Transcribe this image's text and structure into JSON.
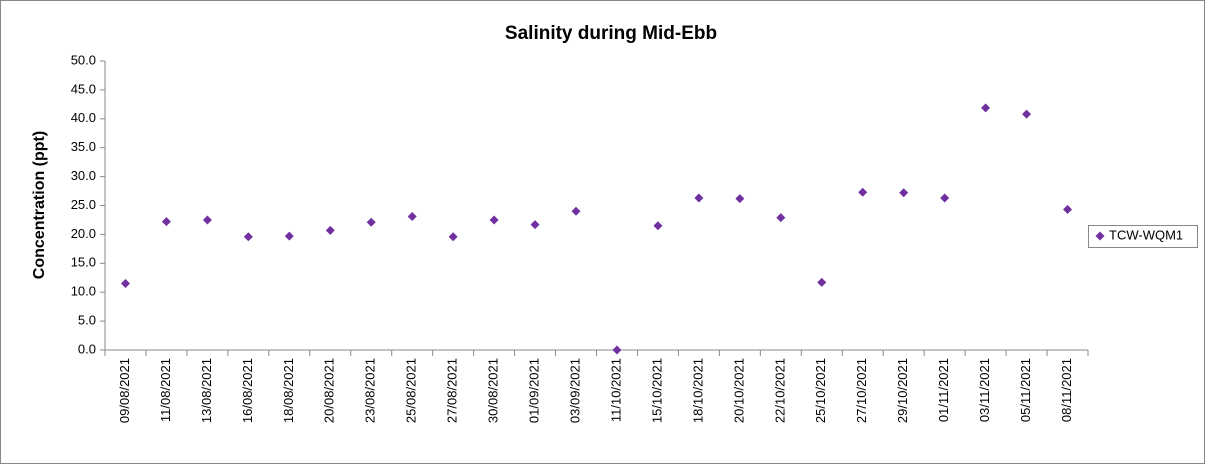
{
  "chart_data": {
    "type": "scatter",
    "title": "Salinity during Mid-Ebb",
    "y_label": "Concentration (ppt)",
    "categories": [
      "09/08/2021",
      "11/08/2021",
      "13/08/2021",
      "16/08/2021",
      "18/08/2021",
      "20/08/2021",
      "23/08/2021",
      "25/08/2021",
      "27/08/2021",
      "30/08/2021",
      "01/09/2021",
      "03/09/2021",
      "11/10/2021",
      "15/10/2021",
      "18/10/2021",
      "20/10/2021",
      "22/10/2021",
      "25/10/2021",
      "27/10/2021",
      "29/10/2021",
      "01/11/2021",
      "03/11/2021",
      "05/11/2021",
      "08/11/2021"
    ],
    "series": [
      {
        "name": "TCW-WQM1",
        "color": "#7030a0",
        "values": [
          11.5,
          22.2,
          22.5,
          19.6,
          19.7,
          20.7,
          22.1,
          23.1,
          19.6,
          22.5,
          21.7,
          24.0,
          0.0,
          21.5,
          26.3,
          26.2,
          22.9,
          11.7,
          27.3,
          27.2,
          26.3,
          41.9,
          40.8,
          24.3
        ]
      }
    ],
    "ylim": [
      0,
      50
    ],
    "yticks": [
      {
        "value": 0,
        "label": "0.0"
      },
      {
        "value": 5,
        "label": "5.0"
      },
      {
        "value": 10,
        "label": "10.0"
      },
      {
        "value": 15,
        "label": "15.0"
      },
      {
        "value": 20,
        "label": "20.0"
      },
      {
        "value": 25,
        "label": "25.0"
      },
      {
        "value": 30,
        "label": "30.0"
      },
      {
        "value": 35,
        "label": "35.0"
      },
      {
        "value": 40,
        "label": "40.0"
      },
      {
        "value": 45,
        "label": "45.0"
      },
      {
        "value": 50,
        "label": "50.0"
      }
    ],
    "grid": false,
    "legend": "right"
  }
}
